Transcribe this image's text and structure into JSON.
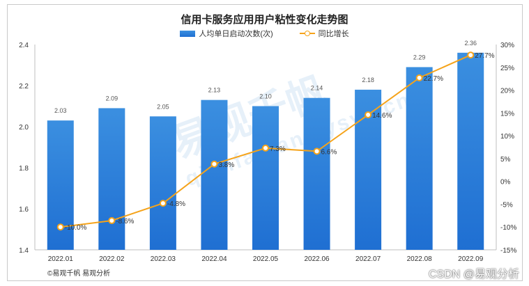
{
  "chart_data": {
    "type": "bar",
    "title": "信用卡服务应用用户粘性变化走势图",
    "categories": [
      "2022.01",
      "2022.02",
      "2022.03",
      "2022.04",
      "2022.05",
      "2022.06",
      "2022.07",
      "2022.08",
      "2022.09"
    ],
    "series": [
      {
        "name": "人均单日启动次数(次)",
        "type": "bar",
        "axis": "left",
        "values": [
          2.03,
          2.09,
          2.05,
          2.13,
          2.1,
          2.14,
          2.18,
          2.29,
          2.36
        ],
        "labels": [
          "2.03",
          "2.09",
          "2.05",
          "2.13",
          "2.10",
          "2.14",
          "2.18",
          "2.29",
          "2.36"
        ]
      },
      {
        "name": "同比增长",
        "type": "line",
        "axis": "right",
        "values": [
          -10.0,
          -8.6,
          -4.8,
          3.8,
          7.3,
          6.6,
          14.6,
          22.7,
          27.7
        ],
        "labels": [
          "-10.0%",
          "-8.6%",
          "-4.8%",
          "3.8%",
          "7.3%",
          "6.6%",
          "14.6%",
          "22.7%",
          "27.7%"
        ]
      }
    ],
    "y_left": {
      "min": 1.4,
      "max": 2.4,
      "ticks": [
        "1.4",
        "1.6",
        "1.8",
        "2.0",
        "2.2",
        "2.4"
      ]
    },
    "y_right": {
      "min": -15,
      "max": 30,
      "ticks": [
        "-15%",
        "-10%",
        "-5%",
        "0%",
        "5%",
        "10%",
        "15%",
        "20%",
        "25%",
        "30%"
      ]
    },
    "legend_position": "top-center",
    "grid": false
  },
  "colors": {
    "bar_top": "#3b8fe0",
    "bar_bottom": "#1f6fd2",
    "line": "#f5a31a"
  },
  "footer": {
    "source": "©易观千帆 易观分析",
    "credit": "CSDN @易观分析"
  },
  "watermark": {
    "main": "易观千帆",
    "sub": "qianfan.analysys.cn"
  }
}
